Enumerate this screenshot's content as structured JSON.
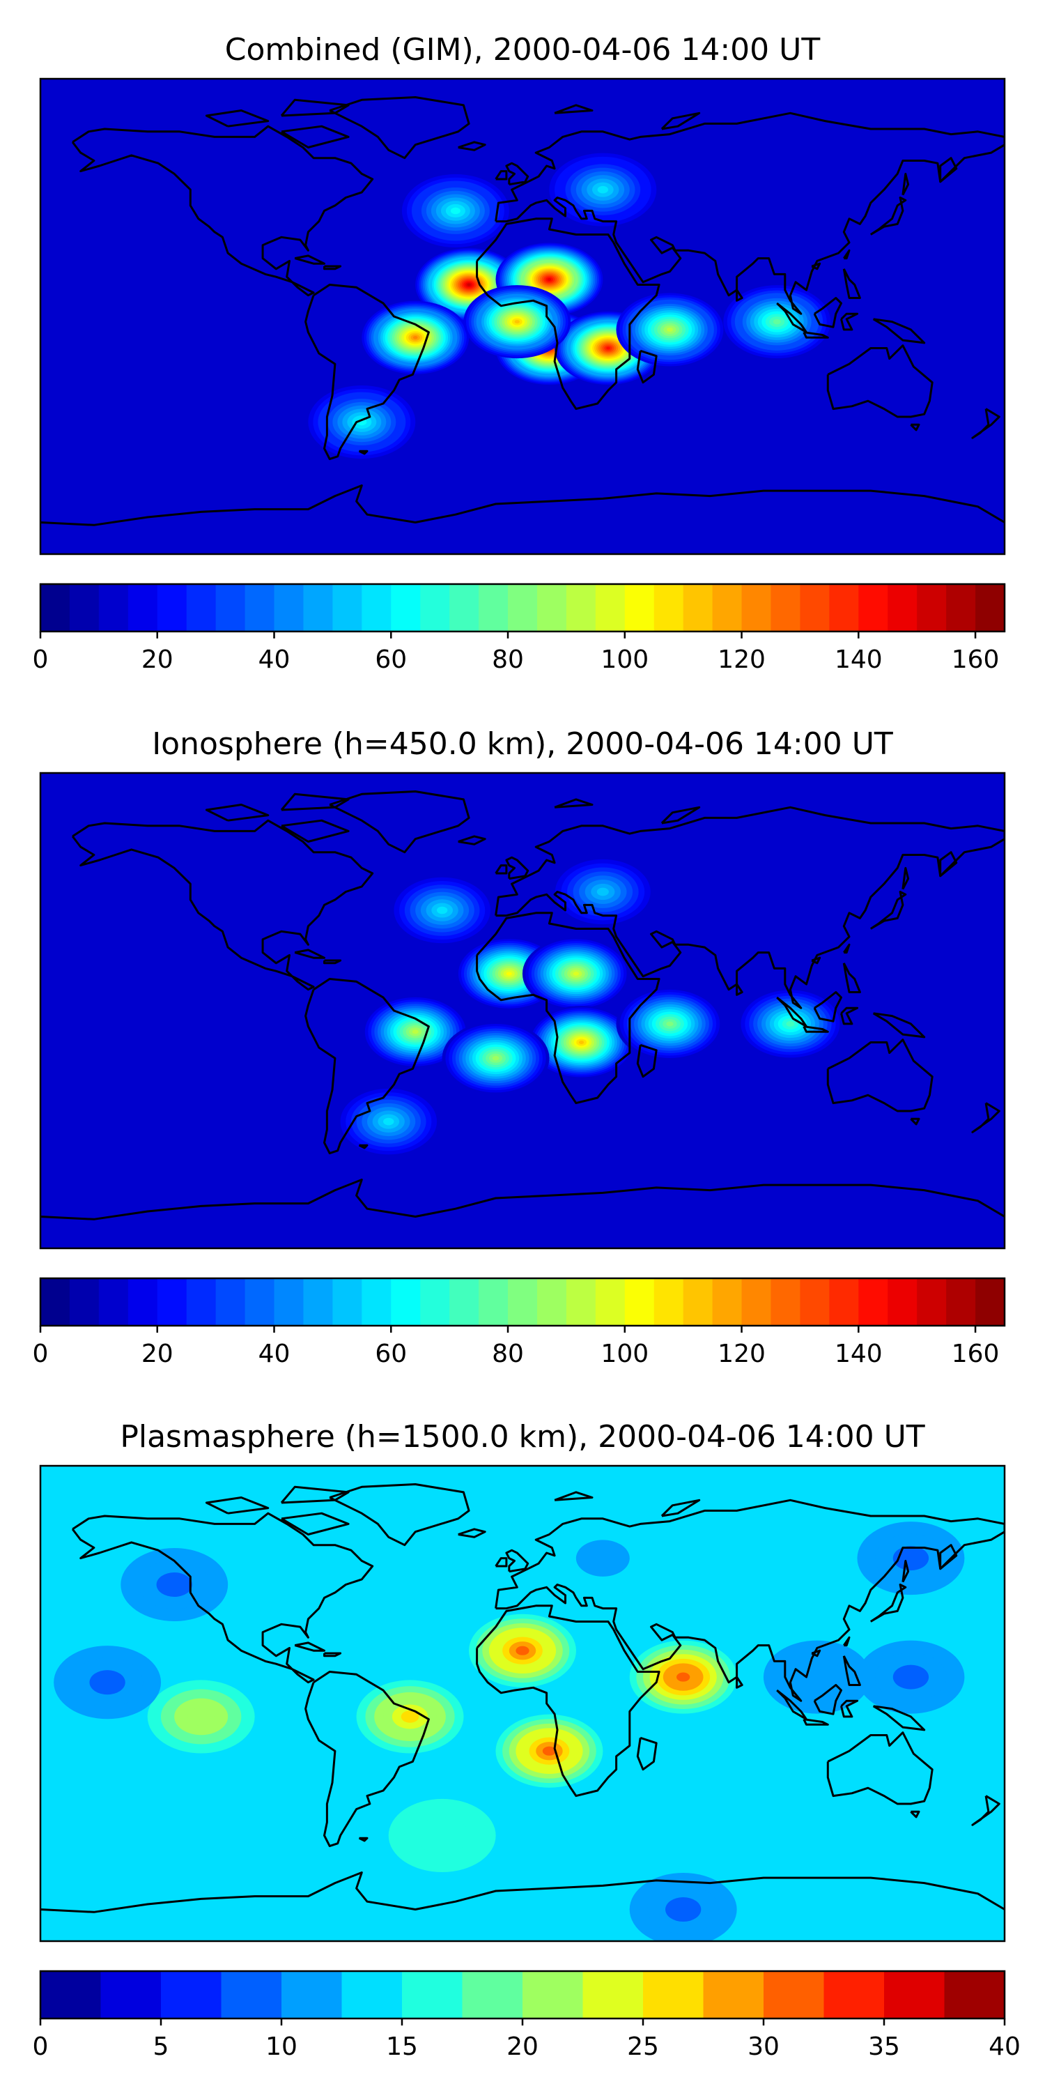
{
  "chart_data": [
    {
      "type": "heatmap",
      "title": "Combined (GIM), 2000-04-06 14:00 UT",
      "colorbar": {
        "min": 0,
        "max": 165,
        "levels": 33,
        "ticks": [
          0,
          20,
          40,
          60,
          80,
          100,
          120,
          140,
          160
        ],
        "tick_labels": [
          "0",
          "20",
          "40",
          "60",
          "80",
          "100",
          "120",
          "140",
          "160"
        ]
      },
      "background_level": 12,
      "features": [
        {
          "lon": -20,
          "lat": 12,
          "value": 150
        },
        {
          "lon": 10,
          "lat": 14,
          "value": 148
        },
        {
          "lon": 10,
          "lat": -12,
          "value": 140
        },
        {
          "lon": 32,
          "lat": -12,
          "value": 140
        },
        {
          "lon": -40,
          "lat": -8,
          "value": 120
        },
        {
          "lon": -2,
          "lat": -2,
          "value": 110
        },
        {
          "lon": 55,
          "lat": -5,
          "value": 90
        },
        {
          "lon": 95,
          "lat": -2,
          "value": 75
        },
        {
          "lon": -25,
          "lat": 40,
          "value": 60
        },
        {
          "lon": 30,
          "lat": 48,
          "value": 55
        },
        {
          "lon": -60,
          "lat": -40,
          "value": 60
        }
      ]
    },
    {
      "type": "heatmap",
      "title": "Ionosphere  (h=450.0 km), 2000-04-06 14:00 UT",
      "colorbar": {
        "min": 0,
        "max": 165,
        "levels": 33,
        "ticks": [
          0,
          20,
          40,
          60,
          80,
          100,
          120,
          140,
          160
        ],
        "tick_labels": [
          "0",
          "20",
          "40",
          "60",
          "80",
          "100",
          "120",
          "140",
          "160"
        ]
      },
      "background_level": 10,
      "features": [
        {
          "lon": -5,
          "lat": 14,
          "value": 100
        },
        {
          "lon": 20,
          "lat": 14,
          "value": 98
        },
        {
          "lon": 22,
          "lat": -12,
          "value": 110
        },
        {
          "lon": -40,
          "lat": -8,
          "value": 92
        },
        {
          "lon": -10,
          "lat": -18,
          "value": 88
        },
        {
          "lon": 55,
          "lat": -5,
          "value": 80
        },
        {
          "lon": 100,
          "lat": -5,
          "value": 70
        },
        {
          "lon": -30,
          "lat": 38,
          "value": 55
        },
        {
          "lon": 30,
          "lat": 45,
          "value": 50
        },
        {
          "lon": -50,
          "lat": -42,
          "value": 55
        }
      ]
    },
    {
      "type": "heatmap",
      "title": "Plasmasphere (h=1500.0 km), 2000-04-06 14:00 UT",
      "colorbar": {
        "min": 0,
        "max": 40,
        "levels": 16,
        "ticks": [
          0,
          5,
          10,
          15,
          20,
          25,
          30,
          35,
          40
        ],
        "tick_labels": [
          "0",
          "5",
          "10",
          "15",
          "20",
          "25",
          "30",
          "35",
          "40"
        ]
      },
      "background_level": 14,
      "features": [
        {
          "lon": 0,
          "lat": 20,
          "value": 31
        },
        {
          "lon": 10,
          "lat": -18,
          "value": 31
        },
        {
          "lon": 60,
          "lat": 10,
          "value": 32
        },
        {
          "lon": -42,
          "lat": -5,
          "value": 26
        },
        {
          "lon": -120,
          "lat": -5,
          "value": 22
        },
        {
          "lon": -155,
          "lat": 8,
          "value": 9
        },
        {
          "lon": 110,
          "lat": 10,
          "value": 10
        },
        {
          "lon": 145,
          "lat": 10,
          "value": 8
        },
        {
          "lon": -130,
          "lat": 45,
          "value": 8
        },
        {
          "lon": 145,
          "lat": 55,
          "value": 8
        },
        {
          "lon": 30,
          "lat": 55,
          "value": 12
        },
        {
          "lon": 60,
          "lat": -78,
          "value": 9
        },
        {
          "lon": -30,
          "lat": -50,
          "value": 16
        }
      ]
    }
  ]
}
